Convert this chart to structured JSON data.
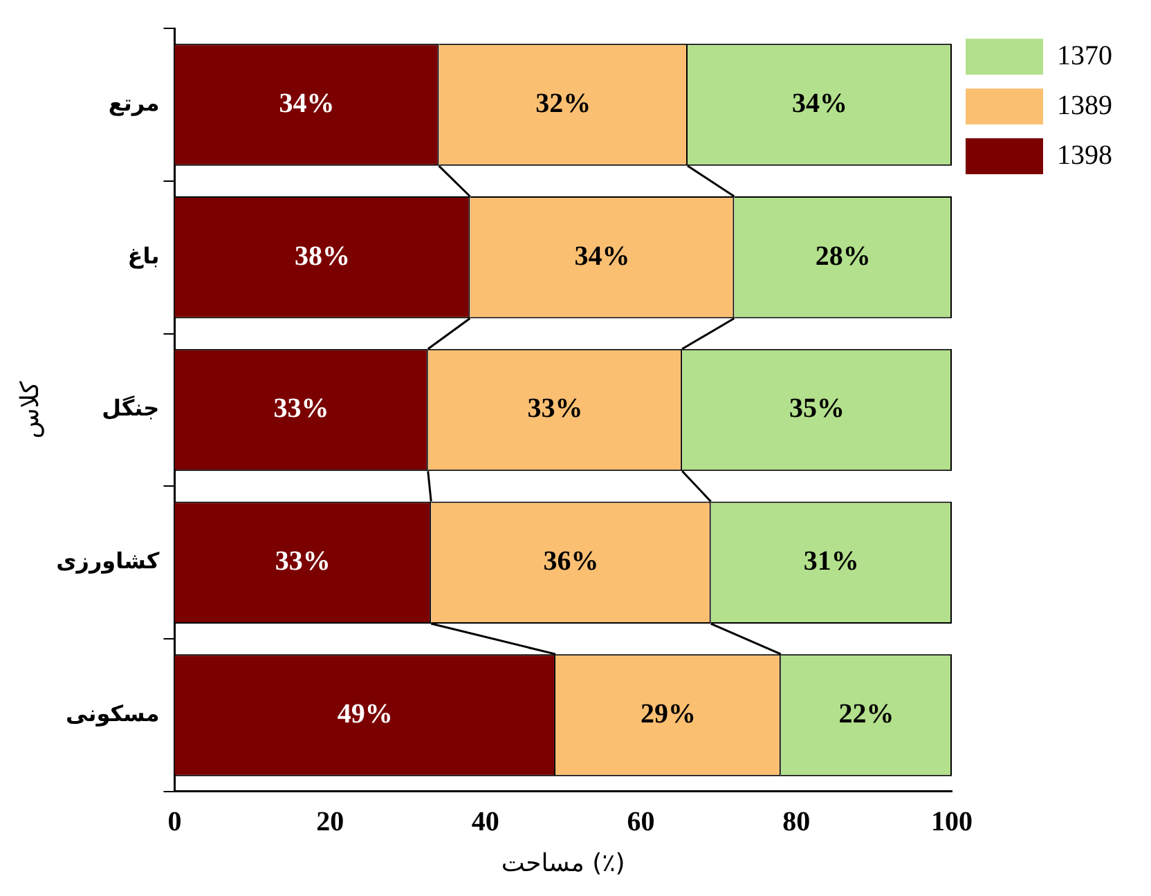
{
  "chart_data": {
    "type": "bar",
    "orientation": "horizontal",
    "stacked": true,
    "categories": [
      "مرتع",
      "باغ",
      "جنگل",
      "کشاورزی",
      "مسکونی"
    ],
    "series": [
      {
        "name": "1398",
        "color": "#7b0000",
        "values": [
          34,
          38,
          32.6,
          33,
          49
        ]
      },
      {
        "name": "1389",
        "color": "#fbbf72",
        "values": [
          32,
          34,
          32.7,
          36,
          29
        ]
      },
      {
        "name": "1370",
        "color": "#b3e08c",
        "values": [
          34,
          28,
          34.7,
          31,
          22
        ]
      }
    ],
    "xlabel": "مساحت (٪)",
    "ylabel": "کلاس",
    "xlim": [
      0,
      100
    ],
    "xticks": [
      0,
      20,
      40,
      60,
      80,
      100
    ],
    "value_labels": [
      [
        "34%",
        "38%",
        "33%",
        "33%",
        "49%"
      ],
      [
        "32%",
        "34%",
        "33%",
        "36%",
        "29%"
      ],
      [
        "34%",
        "28%",
        "35%",
        "31%",
        "22%"
      ]
    ],
    "grid": false,
    "legend": "top right"
  }
}
